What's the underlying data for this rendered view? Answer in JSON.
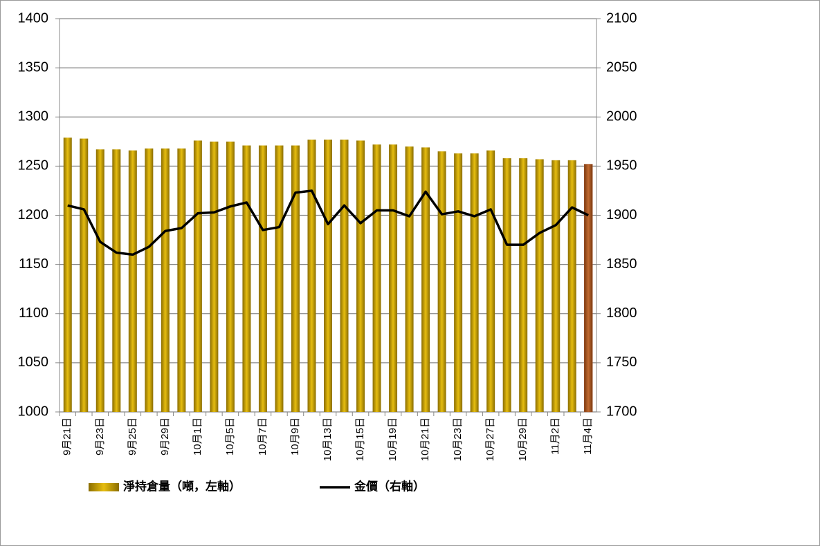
{
  "chart_data": {
    "type": "bar",
    "categories": [
      "9月21日",
      null,
      "9月23日",
      null,
      "9月25日",
      null,
      "9月29日",
      null,
      "10月1日",
      null,
      "10月5日",
      null,
      "10月7日",
      null,
      "10月9日",
      null,
      "10月13日",
      null,
      "10月15日",
      null,
      "10月19日",
      null,
      "10月21日",
      null,
      "10月23日",
      null,
      "10月27日",
      null,
      "10月29日",
      null,
      "11月2日",
      null,
      "11月4日"
    ],
    "series": [
      {
        "name": "淨持倉量（噸，左軸）",
        "type": "bar",
        "color": "#c9a400",
        "last_color": "#a0522d",
        "values": [
          1279,
          1278,
          1267,
          1267,
          1266,
          1268,
          1268,
          1268,
          1276,
          1275,
          1275,
          1271,
          1271,
          1271,
          1271,
          1277,
          1277,
          1277,
          1276,
          1272,
          1272,
          1270,
          1269,
          1265,
          1263,
          1263,
          1266,
          1258,
          1258,
          1257,
          1256,
          1256,
          1252
        ]
      },
      {
        "name": "金價（右軸）",
        "type": "line",
        "axis": "y2",
        "color": "#000000",
        "values": [
          1910,
          1906,
          1873,
          1862,
          1860,
          1868,
          1884,
          1887,
          1902,
          1903,
          1909,
          1913,
          1885,
          1888,
          1923,
          1925,
          1891,
          1910,
          1892,
          1905,
          1905,
          1899,
          1924,
          1901,
          1904,
          1899,
          1906,
          1870,
          1870,
          1882,
          1890,
          1908,
          1900
        ]
      }
    ],
    "ylim": [
      1000,
      1400
    ],
    "yticks": [
      1000,
      1050,
      1100,
      1150,
      1200,
      1250,
      1300,
      1350,
      1400
    ],
    "y2lim": [
      1700,
      2100
    ],
    "y2ticks": [
      1700,
      1750,
      1800,
      1850,
      1900,
      1950,
      2000,
      2050,
      2100
    ],
    "grid": true,
    "legend": "bottom"
  }
}
